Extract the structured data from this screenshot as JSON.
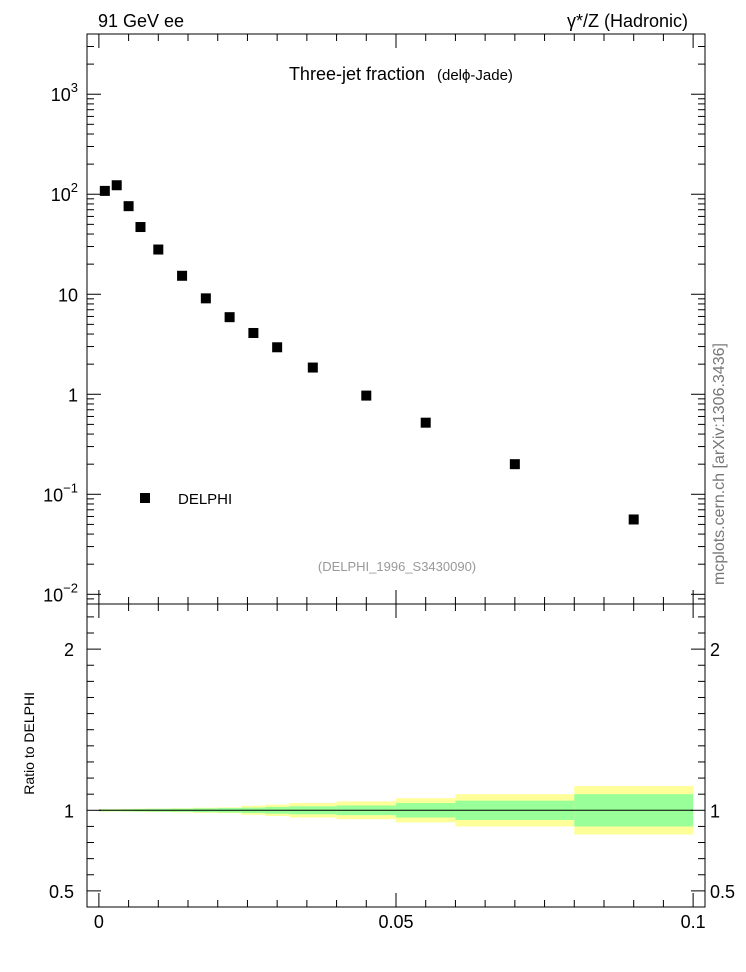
{
  "header": {
    "left_label": "91 GeV ee",
    "right_label": "γ*/Z (Hadronic)"
  },
  "watermark": "mcplots.cern.ch [arXiv:1306.3436]",
  "chart_data": [
    {
      "type": "scatter",
      "title_main": "Three-jet fraction",
      "title_sub": "(delϕ-Jade)",
      "analysis_label": "(DELPHI_1996_S3430090)",
      "y_scale": "log",
      "ylim": [
        0.008,
        4000
      ],
      "xlim": [
        -0.002,
        0.102
      ],
      "y_tick_labels": [
        {
          "value": 0.01,
          "base": "10",
          "exp": "−2"
        },
        {
          "value": 0.1,
          "base": "10",
          "exp": "−1"
        },
        {
          "value": 1,
          "base": "1",
          "exp": ""
        },
        {
          "value": 10,
          "base": "10",
          "exp": ""
        },
        {
          "value": 100,
          "base": "10",
          "exp": "2"
        },
        {
          "value": 1000,
          "base": "10",
          "exp": "3"
        }
      ],
      "legend": {
        "placement": "bottom-left",
        "entries": [
          "DELPHI"
        ]
      },
      "series": [
        {
          "name": "DELPHI",
          "marker": "square",
          "color": "#000000",
          "x": [
            0.001,
            0.003,
            0.005,
            0.007,
            0.01,
            0.014,
            0.018,
            0.022,
            0.026,
            0.03,
            0.036,
            0.045,
            0.055,
            0.07,
            0.09
          ],
          "y": [
            108,
            123,
            76,
            47,
            28,
            15.3,
            9.1,
            5.9,
            4.1,
            2.95,
            1.85,
            0.97,
            0.52,
            0.2,
            0.056
          ]
        }
      ]
    },
    {
      "type": "area",
      "ylabel": "Ratio to DELPHI",
      "ylim": [
        0.4,
        2.28
      ],
      "xlim": [
        -0.002,
        0.102
      ],
      "y_ticks": [
        0.5,
        1,
        2
      ],
      "y_tick_labels": [
        "0.5",
        "1",
        "2"
      ],
      "x_ticks": [
        0,
        0.05,
        0.1
      ],
      "x_tick_labels": [
        "0",
        "0.05",
        "0.1"
      ],
      "reference_line": 1,
      "bands": {
        "inner_color": "#99ff99",
        "outer_color": "#ffff99",
        "bins": [
          {
            "xlo": 0.0,
            "xhi": 0.002,
            "inner": 0.006,
            "outer": 0.008
          },
          {
            "xlo": 0.002,
            "xhi": 0.004,
            "inner": 0.006,
            "outer": 0.008
          },
          {
            "xlo": 0.004,
            "xhi": 0.006,
            "inner": 0.007,
            "outer": 0.009
          },
          {
            "xlo": 0.006,
            "xhi": 0.008,
            "inner": 0.008,
            "outer": 0.01
          },
          {
            "xlo": 0.008,
            "xhi": 0.012,
            "inner": 0.009,
            "outer": 0.011
          },
          {
            "xlo": 0.012,
            "xhi": 0.016,
            "inner": 0.01,
            "outer": 0.013
          },
          {
            "xlo": 0.016,
            "xhi": 0.02,
            "inner": 0.012,
            "outer": 0.016
          },
          {
            "xlo": 0.02,
            "xhi": 0.024,
            "inner": 0.014,
            "outer": 0.018
          },
          {
            "xlo": 0.024,
            "xhi": 0.028,
            "inner": 0.017,
            "outer": 0.028
          },
          {
            "xlo": 0.028,
            "xhi": 0.032,
            "inner": 0.021,
            "outer": 0.035
          },
          {
            "xlo": 0.032,
            "xhi": 0.04,
            "inner": 0.025,
            "outer": 0.045
          },
          {
            "xlo": 0.04,
            "xhi": 0.05,
            "inner": 0.03,
            "outer": 0.055
          },
          {
            "xlo": 0.05,
            "xhi": 0.06,
            "inner": 0.045,
            "outer": 0.075
          },
          {
            "xlo": 0.06,
            "xhi": 0.08,
            "inner": 0.06,
            "outer": 0.1
          },
          {
            "xlo": 0.08,
            "xhi": 0.1,
            "inner": 0.1,
            "outer": 0.15
          }
        ]
      }
    }
  ]
}
